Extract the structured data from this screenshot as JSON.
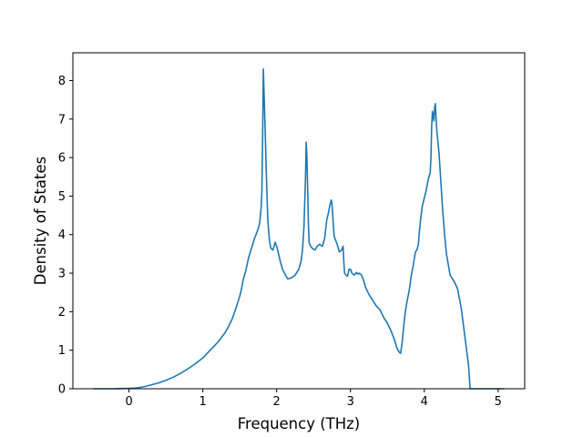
{
  "chart_data": {
    "type": "line",
    "title": "",
    "xlabel": "Frequency (THz)",
    "ylabel": "Density of States",
    "xlim": [
      -0.76,
      5.36
    ],
    "ylim": [
      0,
      8.72
    ],
    "xticks": [
      0,
      1,
      2,
      3,
      4,
      5
    ],
    "yticks": [
      0,
      1,
      2,
      3,
      4,
      5,
      6,
      7,
      8
    ],
    "xtick_labels": [
      "0",
      "1",
      "2",
      "3",
      "4",
      "5"
    ],
    "ytick_labels": [
      "0",
      "1",
      "2",
      "3",
      "4",
      "5",
      "6",
      "7",
      "8"
    ],
    "grid": false,
    "legend": "none",
    "colors": {
      "line": "#1f77b4",
      "axes": "#000000",
      "background": "#ffffff"
    },
    "series": [
      {
        "x": [
          -0.48,
          -0.2,
          0,
          0.1,
          0.2,
          0.3,
          0.4,
          0.5,
          0.6,
          0.7,
          0.8,
          0.9,
          1.0,
          1.1,
          1.2,
          1.3,
          1.35,
          1.4,
          1.45,
          1.5,
          1.52,
          1.55,
          1.58,
          1.62,
          1.66,
          1.7,
          1.72,
          1.75,
          1.77,
          1.78,
          1.79,
          1.8,
          1.81,
          1.82,
          1.84,
          1.86,
          1.88,
          1.9,
          1.92,
          1.95,
          1.98,
          2.0,
          2.02,
          2.05,
          2.08,
          2.12,
          2.15,
          2.2,
          2.25,
          2.3,
          2.33,
          2.35,
          2.37,
          2.39,
          2.4,
          2.41,
          2.42,
          2.43,
          2.44,
          2.45,
          2.46,
          2.48,
          2.5,
          2.52,
          2.55,
          2.58,
          2.6,
          2.62,
          2.65,
          2.68,
          2.7,
          2.72,
          2.74,
          2.75,
          2.76,
          2.77,
          2.78,
          2.8,
          2.82,
          2.85,
          2.88,
          2.9,
          2.91,
          2.92,
          2.94,
          2.96,
          2.98,
          3.0,
          3.02,
          3.05,
          3.08,
          3.1,
          3.12,
          3.15,
          3.18,
          3.2,
          3.25,
          3.3,
          3.35,
          3.4,
          3.45,
          3.5,
          3.55,
          3.58,
          3.6,
          3.63,
          3.66,
          3.68,
          3.7,
          3.72,
          3.74,
          3.76,
          3.8,
          3.82,
          3.85,
          3.88,
          3.9,
          3.92,
          3.93,
          3.95,
          3.97,
          3.98,
          4.0,
          4.02,
          4.05,
          4.07,
          4.08,
          4.09,
          4.1,
          4.11,
          4.12,
          4.13,
          4.14,
          4.15,
          4.16,
          4.17,
          4.2,
          4.22,
          4.25,
          4.28,
          4.3,
          4.35,
          4.4,
          4.45,
          4.5,
          4.55,
          4.6,
          4.62,
          4.7,
          4.8,
          4.9,
          5.0,
          5.08
        ],
        "y": [
          0,
          0,
          0.01,
          0.02,
          0.05,
          0.1,
          0.15,
          0.22,
          0.3,
          0.4,
          0.52,
          0.65,
          0.8,
          1.0,
          1.2,
          1.45,
          1.62,
          1.82,
          2.1,
          2.4,
          2.55,
          2.85,
          3.05,
          3.4,
          3.65,
          3.9,
          4.0,
          4.15,
          4.3,
          4.5,
          4.7,
          5.1,
          6.5,
          8.3,
          7.0,
          5.6,
          4.4,
          3.9,
          3.65,
          3.6,
          3.8,
          3.7,
          3.55,
          3.3,
          3.1,
          2.95,
          2.85,
          2.88,
          2.95,
          3.1,
          3.3,
          3.6,
          4.2,
          5.4,
          6.4,
          6.0,
          5.2,
          4.3,
          3.8,
          3.75,
          3.7,
          3.65,
          3.62,
          3.6,
          3.7,
          3.75,
          3.72,
          3.7,
          3.9,
          4.4,
          4.55,
          4.75,
          4.9,
          4.8,
          4.5,
          4.2,
          3.95,
          3.85,
          3.75,
          3.55,
          3.6,
          3.7,
          3.3,
          3.0,
          2.95,
          2.92,
          3.1,
          3.1,
          3.0,
          2.95,
          3.02,
          2.98,
          3.0,
          2.95,
          2.8,
          2.65,
          2.45,
          2.3,
          2.15,
          2.05,
          1.85,
          1.7,
          1.5,
          1.35,
          1.25,
          1.05,
          0.95,
          0.92,
          1.2,
          1.6,
          1.95,
          2.2,
          2.6,
          2.9,
          3.2,
          3.55,
          3.6,
          3.75,
          4.0,
          4.4,
          4.7,
          4.8,
          4.95,
          5.1,
          5.4,
          5.55,
          5.6,
          6.0,
          6.8,
          7.2,
          7.1,
          6.95,
          7.3,
          7.4,
          7.0,
          6.7,
          6.1,
          5.5,
          4.6,
          3.9,
          3.5,
          2.95,
          2.8,
          2.6,
          2.1,
          1.35,
          0.6,
          0,
          0,
          0,
          0,
          0,
          0
        ]
      }
    ]
  }
}
